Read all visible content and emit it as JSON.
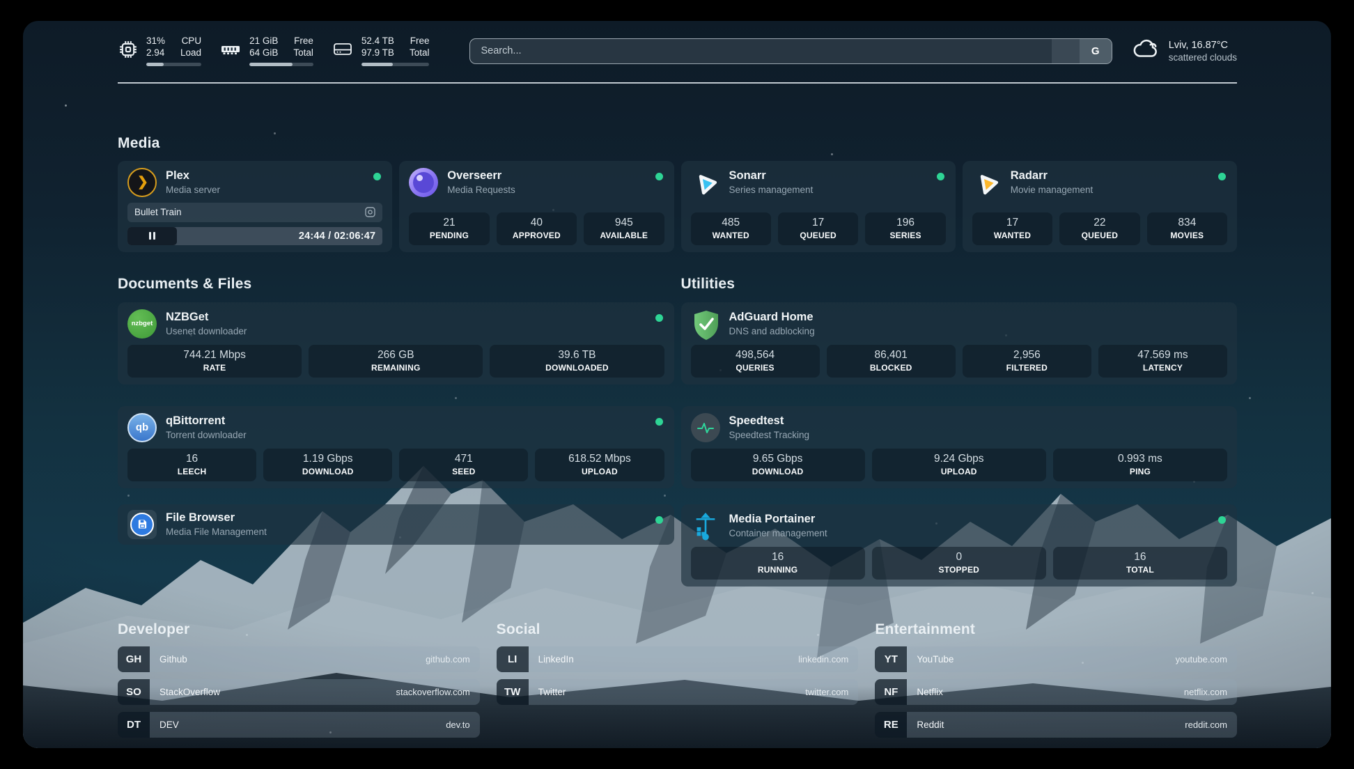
{
  "topbar": {
    "resources": [
      {
        "icon": "cpu-icon",
        "values": [
          "31%",
          "2.94"
        ],
        "labels": [
          "CPU",
          "Load"
        ],
        "progress_percent": 31
      },
      {
        "icon": "memory-icon",
        "values": [
          "21 GiB",
          "64 GiB"
        ],
        "labels": [
          "Free",
          "Total"
        ],
        "progress_percent": 67
      },
      {
        "icon": "disk-icon",
        "values": [
          "52.4 TB",
          "97.9 TB"
        ],
        "labels": [
          "Free",
          "Total"
        ],
        "progress_percent": 46
      }
    ],
    "search": {
      "placeholder": "Search...",
      "provider_button": "G"
    },
    "weather": {
      "icon": "cloud-icon",
      "location_temp": "Lviv, 16.87°C",
      "condition": "scattered clouds"
    }
  },
  "sections": {
    "media": {
      "heading": "Media",
      "cards": [
        {
          "title": "Plex",
          "subtitle": "Media server",
          "status": "online",
          "now_playing": "Bullet Train",
          "time_display": "24:44 / 02:06:47",
          "progress_percent": 19.5
        },
        {
          "title": "Overseerr",
          "subtitle": "Media Requests",
          "status": "online",
          "stats": [
            {
              "value": "21",
              "label": "PENDING"
            },
            {
              "value": "40",
              "label": "APPROVED"
            },
            {
              "value": "945",
              "label": "AVAILABLE"
            }
          ]
        },
        {
          "title": "Sonarr",
          "subtitle": "Series management",
          "status": "online",
          "stats": [
            {
              "value": "485",
              "label": "WANTED"
            },
            {
              "value": "17",
              "label": "QUEUED"
            },
            {
              "value": "196",
              "label": "SERIES"
            }
          ]
        },
        {
          "title": "Radarr",
          "subtitle": "Movie management",
          "status": "online",
          "stats": [
            {
              "value": "17",
              "label": "WANTED"
            },
            {
              "value": "22",
              "label": "QUEUED"
            },
            {
              "value": "834",
              "label": "MOVIES"
            }
          ]
        }
      ]
    },
    "documents": {
      "heading": "Documents & Files",
      "cards": [
        {
          "title": "NZBGet",
          "subtitle": "Usenet downloader",
          "status": "online",
          "stats": [
            {
              "value": "744.21 Mbps",
              "label": "RATE"
            },
            {
              "value": "266 GB",
              "label": "REMAINING"
            },
            {
              "value": "39.6 TB",
              "label": "DOWNLOADED"
            }
          ]
        },
        {
          "title": "qBittorrent",
          "subtitle": "Torrent downloader",
          "status": "online",
          "stats": [
            {
              "value": "16",
              "label": "LEECH"
            },
            {
              "value": "1.19 Gbps",
              "label": "DOWNLOAD"
            },
            {
              "value": "471",
              "label": "SEED"
            },
            {
              "value": "618.52 Mbps",
              "label": "UPLOAD"
            }
          ]
        },
        {
          "title": "File Browser",
          "subtitle": "Media File Management",
          "status": "online"
        }
      ]
    },
    "utilities": {
      "heading": "Utilities",
      "cards": [
        {
          "title": "AdGuard Home",
          "subtitle": "DNS and adblocking",
          "stats": [
            {
              "value": "498,564",
              "label": "QUERIES"
            },
            {
              "value": "86,401",
              "label": "BLOCKED"
            },
            {
              "value": "2,956",
              "label": "FILTERED"
            },
            {
              "value": "47.569 ms",
              "label": "LATENCY"
            }
          ]
        },
        {
          "title": "Speedtest",
          "subtitle": "Speedtest Tracking",
          "stats": [
            {
              "value": "9.65 Gbps",
              "label": "DOWNLOAD"
            },
            {
              "value": "9.24 Gbps",
              "label": "UPLOAD"
            },
            {
              "value": "0.993 ms",
              "label": "PING"
            }
          ]
        },
        {
          "title": "Media Portainer",
          "subtitle": "Container management",
          "status": "online",
          "stats": [
            {
              "value": "16",
              "label": "RUNNING"
            },
            {
              "value": "0",
              "label": "STOPPED"
            },
            {
              "value": "16",
              "label": "TOTAL"
            }
          ]
        }
      ]
    },
    "bookmarks": [
      {
        "heading": "Developer",
        "links": [
          {
            "abbr": "GH",
            "name": "Github",
            "url": "github.com"
          },
          {
            "abbr": "SO",
            "name": "StackOverflow",
            "url": "stackoverflow.com"
          },
          {
            "abbr": "DT",
            "name": "DEV",
            "url": "dev.to"
          }
        ]
      },
      {
        "heading": "Social",
        "links": [
          {
            "abbr": "LI",
            "name": "LinkedIn",
            "url": "linkedin.com"
          },
          {
            "abbr": "TW",
            "name": "Twitter",
            "url": "twitter.com"
          }
        ]
      },
      {
        "heading": "Entertainment",
        "links": [
          {
            "abbr": "YT",
            "name": "YouTube",
            "url": "youtube.com"
          },
          {
            "abbr": "NF",
            "name": "Netflix",
            "url": "netflix.com"
          },
          {
            "abbr": "RE",
            "name": "Reddit",
            "url": "reddit.com"
          }
        ]
      }
    ]
  },
  "colors": {
    "status_online": "#2ed495",
    "plex_accent": "#e5a00d",
    "sonarr_accent": "#38c1f1",
    "radarr_accent": "#fdb82c",
    "portainer_accent": "#19a9dd",
    "adguard_accent": "#5fb868"
  }
}
